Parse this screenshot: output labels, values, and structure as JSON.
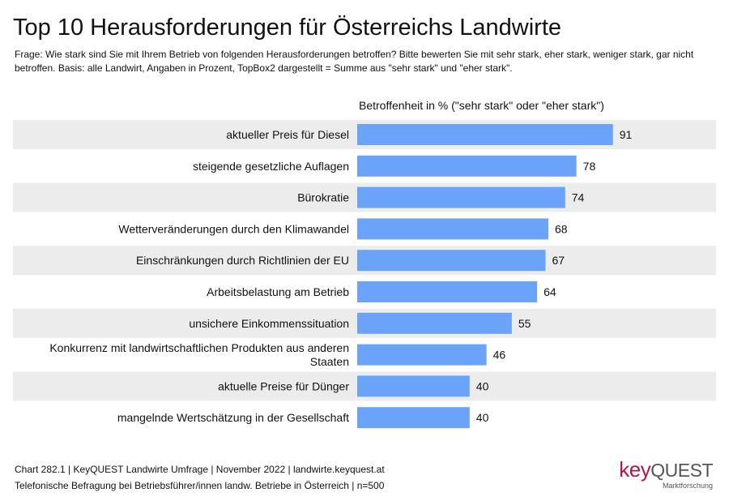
{
  "title": "Top 10 Herausforderungen für Österreichs Landwirte",
  "question": "Frage: Wie stark sind Sie mit Ihrem Betrieb von folgenden Herausforderungen betroffen? Bitte bewerten Sie mit sehr stark, eher stark, weniger stark, gar nicht betroffen. Basis: alle Landwirt, Angaben in Prozent, TopBox2 dargestellt = Summe aus \"sehr stark\" und \"eher stark\".",
  "footer": {
    "line1": "Chart 282.1 | KeyQUEST Landwirte Umfrage | November 2022 | landwirte.keyquest.at",
    "line2": "Telefonische Befragung bei Betriebsführer/innen landw. Betriebe in Österreich | n=500"
  },
  "logo": {
    "key": "key",
    "quest": "QUEST",
    "sub": "Marktforschung"
  },
  "colors": {
    "bar": "#6aa3f8",
    "band": "#ececec",
    "brand": "#b0174a"
  },
  "chart_data": {
    "type": "bar",
    "orientation": "horizontal",
    "xlabel": "Betroffenheit in % (\"sehr stark\" oder \"eher stark\")",
    "xlim": [
      0,
      100
    ],
    "categories": [
      [
        "aktueller Preis für Diesel"
      ],
      [
        "steigende gesetzliche Auflagen"
      ],
      [
        "Bürokratie"
      ],
      [
        "Wetterveränderungen durch den Klimawandel"
      ],
      [
        "Einschränkungen durch Richtlinien der EU"
      ],
      [
        "Arbeitsbelastung am Betrieb"
      ],
      [
        "unsichere Einkommenssituation"
      ],
      [
        "Konkurrenz mit landwirtschaftlichen Produkten aus anderen",
        "Staaten"
      ],
      [
        "aktuelle Preise für Dünger"
      ],
      [
        "mangelnde Wertschätzung in der Gesellschaft"
      ]
    ],
    "values": [
      91,
      78,
      74,
      68,
      67,
      64,
      55,
      46,
      40,
      40
    ],
    "grid": false,
    "legend": "none"
  }
}
